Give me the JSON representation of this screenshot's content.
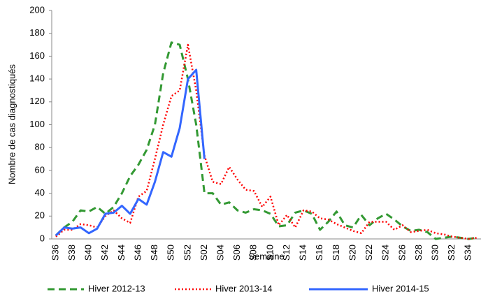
{
  "chart_data": {
    "type": "line",
    "y_label": "Nombre de cas diagnostiqués",
    "x_label": "Semaine",
    "categories": [
      "S36",
      null,
      "S38",
      null,
      "S40",
      null,
      "S42",
      null,
      "S44",
      null,
      "S46",
      null,
      "S48",
      null,
      "S50",
      null,
      "S52",
      null,
      "S02",
      null,
      "S04",
      null,
      "S06",
      null,
      "S08",
      null,
      "S10",
      null,
      "S12",
      null,
      "S14",
      null,
      "S16",
      null,
      "S18",
      null,
      "S20",
      null,
      "S22",
      null,
      "S24",
      null,
      "S26",
      null,
      "S28",
      null,
      "S30",
      null,
      "S32",
      null,
      "S34",
      null
    ],
    "series": [
      {
        "name": "Hiver 2012-13",
        "color": "#339933",
        "style": "dashed",
        "values": [
          3,
          10,
          15,
          25,
          24,
          28,
          22,
          28,
          40,
          55,
          65,
          78,
          100,
          145,
          172,
          170,
          140,
          100,
          40,
          40,
          30,
          32,
          25,
          23,
          26,
          25,
          22,
          11,
          12,
          23,
          25,
          22,
          8,
          15,
          24,
          12,
          10,
          21,
          12,
          18,
          22,
          17,
          11,
          7,
          8,
          6,
          0,
          1,
          2,
          1,
          0,
          1
        ]
      },
      {
        "name": "Hiver 2013-14",
        "color": "#ff0000",
        "style": "dotted",
        "values": [
          2,
          8,
          8,
          13,
          12,
          10,
          20,
          25,
          18,
          14,
          37,
          42,
          70,
          100,
          125,
          130,
          170,
          130,
          73,
          50,
          48,
          63,
          52,
          43,
          42,
          28,
          37,
          12,
          21,
          10,
          25,
          24,
          18,
          17,
          13,
          10,
          7,
          5,
          15,
          15,
          15,
          8,
          12,
          6,
          7,
          8,
          5,
          4,
          2,
          1,
          0,
          1
        ]
      },
      {
        "name": "Hiver 2014-15",
        "color": "#3366ff",
        "style": "solid",
        "values": [
          3,
          10,
          9,
          10,
          5,
          9,
          22,
          23,
          29,
          22,
          35,
          30,
          50,
          76,
          72,
          97,
          140,
          148,
          70,
          null,
          null,
          null,
          null,
          null,
          null,
          null,
          null,
          null,
          null,
          null,
          null,
          null,
          null,
          null,
          null,
          null,
          null,
          null,
          null,
          null,
          null,
          null,
          null,
          null,
          null,
          null,
          null,
          null,
          null,
          null,
          null,
          null
        ]
      }
    ],
    "ylim": [
      0,
      200
    ],
    "yticks": [
      0,
      20,
      40,
      60,
      80,
      100,
      120,
      140,
      160,
      180,
      200
    ],
    "grid": false,
    "legend": "bottom"
  }
}
